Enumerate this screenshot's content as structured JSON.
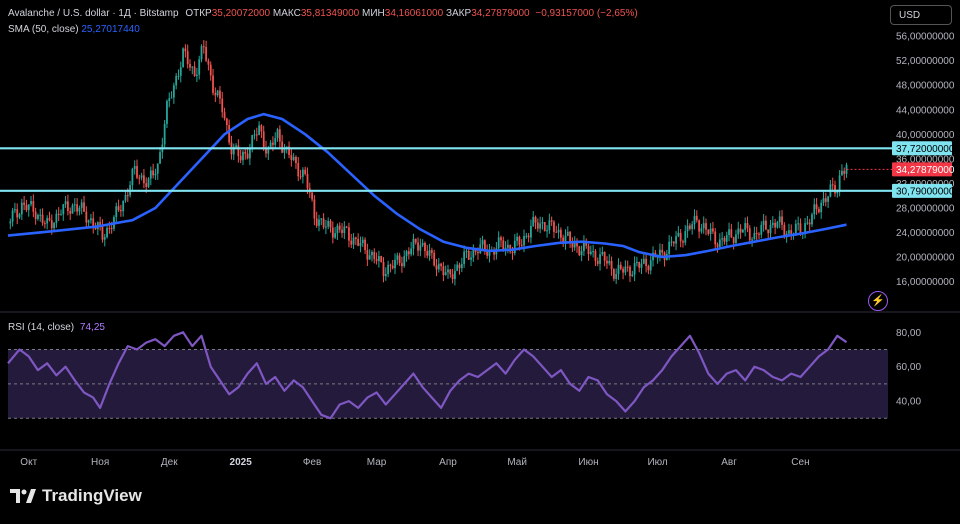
{
  "header": {
    "symbol": "Avalanche / U.S. dollar · 1Д · Bitstamp",
    "open_label": "ОТКР",
    "open": "35,20072000",
    "high_label": "МАКС",
    "high": "35,81349000",
    "low_label": "МИН",
    "low": "34,16061000",
    "close_label": "ЗАКР",
    "close": "34,27879000",
    "change": "−0,93157000 (−2,65%)",
    "sma_label": "SMA (50, close)",
    "sma_value": "25,27017440",
    "rsi_label": "RSI (14, close)",
    "rsi_value": "74,25"
  },
  "currency": "USD",
  "brand": "TradingView",
  "colors": {
    "up": "#26a69a",
    "down": "#ef5350",
    "sma": "#2962ff",
    "hline": "#7fe3f0",
    "rsi": "#7e57c2",
    "rsi_band": "#2a1f45",
    "price_tag": "#f23645"
  },
  "chart_data": [
    {
      "type": "candlestick",
      "title": "Avalanche / U.S. dollar · 1Д · Bitstamp",
      "y_ticks": [
        "16,00000000",
        "20,00000000",
        "24,00000000",
        "28,00000000",
        "32,00000000",
        "36,00000000",
        "40,00000000",
        "44,00000000",
        "48,00000000",
        "52,00000000",
        "56,00000000"
      ],
      "y_tick_values": [
        16,
        20,
        24,
        28,
        32,
        36,
        40,
        44,
        48,
        52,
        56
      ],
      "ylim": [
        13,
        57
      ],
      "x_ticks": [
        "Окт",
        "Ноя",
        "Дек",
        "2025",
        "Фев",
        "Мар",
        "Апр",
        "Май",
        "Июн",
        "Июл",
        "Авг",
        "Сен"
      ],
      "x_tick_days": [
        0,
        31,
        61,
        92,
        123,
        151,
        182,
        212,
        243,
        273,
        304,
        335
      ],
      "x_range_days": [
        -9,
        373
      ],
      "horizontal_lines": [
        {
          "value": 37.72,
          "label": "37,72000000"
        },
        {
          "value": 30.79,
          "label": "30,79000000"
        }
      ],
      "last_price": {
        "value": 34.27879,
        "label": "34,27879000"
      },
      "price_path": [
        [
          -9,
          25.5
        ],
        [
          -3,
          28.5
        ],
        [
          3,
          27.5
        ],
        [
          8,
          25.0
        ],
        [
          14,
          27.5
        ],
        [
          20,
          28.5
        ],
        [
          27,
          26.0
        ],
        [
          32,
          23.5
        ],
        [
          37,
          26.0
        ],
        [
          42,
          30.0
        ],
        [
          46,
          34.0
        ],
        [
          52,
          32.0
        ],
        [
          56,
          35.0
        ],
        [
          60,
          44.0
        ],
        [
          63,
          48.0
        ],
        [
          67,
          53.0
        ],
        [
          72,
          50.0
        ],
        [
          76,
          54.0
        ],
        [
          80,
          48.0
        ],
        [
          84,
          44.0
        ],
        [
          88,
          38.0
        ],
        [
          92,
          36.0
        ],
        [
          96,
          38.0
        ],
        [
          100,
          41.0
        ],
        [
          104,
          37.0
        ],
        [
          108,
          40.0
        ],
        [
          112,
          37.0
        ],
        [
          116,
          35.0
        ],
        [
          120,
          33.0
        ],
        [
          124,
          27.0
        ],
        [
          128,
          25.0
        ],
        [
          133,
          24.5
        ],
        [
          138,
          24.0
        ],
        [
          142,
          22.5
        ],
        [
          147,
          21.0
        ],
        [
          151,
          19.5
        ],
        [
          154,
          18.0
        ],
        [
          160,
          19.0
        ],
        [
          165,
          21.0
        ],
        [
          170,
          22.5
        ],
        [
          175,
          19.5
        ],
        [
          179,
          18.5
        ],
        [
          182,
          16.5
        ],
        [
          186,
          18.5
        ],
        [
          190,
          20.0
        ],
        [
          195,
          21.5
        ],
        [
          200,
          21.0
        ],
        [
          205,
          22.0
        ],
        [
          210,
          21.5
        ],
        [
          214,
          22.5
        ],
        [
          218,
          25.0
        ],
        [
          223,
          25.5
        ],
        [
          228,
          24.5
        ],
        [
          232,
          23.5
        ],
        [
          236,
          22.0
        ],
        [
          240,
          21.5
        ],
        [
          245,
          20.5
        ],
        [
          250,
          19.5
        ],
        [
          255,
          17.5
        ],
        [
          260,
          18.0
        ],
        [
          265,
          18.5
        ],
        [
          270,
          19.5
        ],
        [
          275,
          20.5
        ],
        [
          280,
          22.5
        ],
        [
          285,
          24.0
        ],
        [
          290,
          26.0
        ],
        [
          295,
          24.0
        ],
        [
          300,
          22.5
        ],
        [
          305,
          23.5
        ],
        [
          310,
          24.5
        ],
        [
          315,
          23.5
        ],
        [
          320,
          25.0
        ],
        [
          325,
          25.5
        ],
        [
          330,
          24.0
        ],
        [
          335,
          24.5
        ],
        [
          340,
          26.5
        ],
        [
          344,
          29.0
        ],
        [
          348,
          30.5
        ],
        [
          351,
          31.5
        ],
        [
          353,
          34.5
        ],
        [
          355,
          34.28
        ]
      ],
      "sma_path": [
        [
          -9,
          23.5
        ],
        [
          10,
          24.2
        ],
        [
          30,
          25.0
        ],
        [
          45,
          26.0
        ],
        [
          55,
          28.0
        ],
        [
          65,
          32.0
        ],
        [
          75,
          36.0
        ],
        [
          85,
          40.0
        ],
        [
          95,
          42.5
        ],
        [
          102,
          43.3
        ],
        [
          110,
          42.5
        ],
        [
          120,
          40.0
        ],
        [
          130,
          37.0
        ],
        [
          140,
          33.5
        ],
        [
          150,
          30.0
        ],
        [
          160,
          27.0
        ],
        [
          170,
          24.5
        ],
        [
          180,
          22.5
        ],
        [
          190,
          21.5
        ],
        [
          200,
          21.0
        ],
        [
          210,
          21.2
        ],
        [
          220,
          21.8
        ],
        [
          230,
          22.3
        ],
        [
          240,
          22.5
        ],
        [
          250,
          22.2
        ],
        [
          258,
          21.8
        ],
        [
          265,
          20.8
        ],
        [
          275,
          20.0
        ],
        [
          285,
          20.3
        ],
        [
          295,
          21.0
        ],
        [
          305,
          21.8
        ],
        [
          315,
          22.5
        ],
        [
          325,
          23.2
        ],
        [
          335,
          23.8
        ],
        [
          345,
          24.5
        ],
        [
          355,
          25.27
        ]
      ]
    },
    {
      "type": "line",
      "title": "RSI (14, close)",
      "y_ticks": [
        "40,00",
        "60,00",
        "80,00"
      ],
      "y_tick_values": [
        40,
        60,
        80
      ],
      "ylim": [
        22,
        86
      ],
      "band": [
        30,
        70
      ],
      "series": [
        {
          "name": "RSI (14, close)",
          "points": [
            [
              -9,
              62
            ],
            [
              -4,
              70
            ],
            [
              0,
              66
            ],
            [
              4,
              58
            ],
            [
              8,
              62
            ],
            [
              12,
              55
            ],
            [
              16,
              60
            ],
            [
              20,
              52
            ],
            [
              24,
              45
            ],
            [
              28,
              42
            ],
            [
              31,
              36
            ],
            [
              35,
              50
            ],
            [
              39,
              62
            ],
            [
              43,
              72
            ],
            [
              47,
              70
            ],
            [
              51,
              74
            ],
            [
              55,
              76
            ],
            [
              59,
              72
            ],
            [
              63,
              78
            ],
            [
              67,
              80
            ],
            [
              71,
              72
            ],
            [
              75,
              78
            ],
            [
              79,
              60
            ],
            [
              83,
              52
            ],
            [
              87,
              44
            ],
            [
              91,
              48
            ],
            [
              95,
              56
            ],
            [
              99,
              62
            ],
            [
              103,
              50
            ],
            [
              107,
              54
            ],
            [
              111,
              46
            ],
            [
              115,
              52
            ],
            [
              119,
              48
            ],
            [
              123,
              40
            ],
            [
              127,
              32
            ],
            [
              131,
              30
            ],
            [
              135,
              38
            ],
            [
              139,
              40
            ],
            [
              143,
              36
            ],
            [
              147,
              42
            ],
            [
              151,
              45
            ],
            [
              155,
              38
            ],
            [
              159,
              44
            ],
            [
              163,
              50
            ],
            [
              167,
              56
            ],
            [
              171,
              48
            ],
            [
              175,
              42
            ],
            [
              179,
              36
            ],
            [
              183,
              46
            ],
            [
              187,
              52
            ],
            [
              191,
              56
            ],
            [
              195,
              54
            ],
            [
              199,
              58
            ],
            [
              203,
              62
            ],
            [
              207,
              56
            ],
            [
              211,
              64
            ],
            [
              215,
              70
            ],
            [
              219,
              66
            ],
            [
              223,
              60
            ],
            [
              227,
              54
            ],
            [
              231,
              58
            ],
            [
              235,
              50
            ],
            [
              239,
              46
            ],
            [
              243,
              54
            ],
            [
              247,
              52
            ],
            [
              251,
              44
            ],
            [
              255,
              40
            ],
            [
              259,
              34
            ],
            [
              263,
              40
            ],
            [
              267,
              48
            ],
            [
              271,
              52
            ],
            [
              275,
              58
            ],
            [
              279,
              66
            ],
            [
              283,
              72
            ],
            [
              287,
              78
            ],
            [
              291,
              68
            ],
            [
              295,
              56
            ],
            [
              299,
              50
            ],
            [
              303,
              56
            ],
            [
              307,
              58
            ],
            [
              311,
              52
            ],
            [
              315,
              60
            ],
            [
              319,
              58
            ],
            [
              323,
              54
            ],
            [
              327,
              52
            ],
            [
              331,
              56
            ],
            [
              335,
              54
            ],
            [
              339,
              60
            ],
            [
              343,
              66
            ],
            [
              347,
              70
            ],
            [
              351,
              78
            ],
            [
              355,
              74.25
            ]
          ]
        }
      ]
    }
  ]
}
